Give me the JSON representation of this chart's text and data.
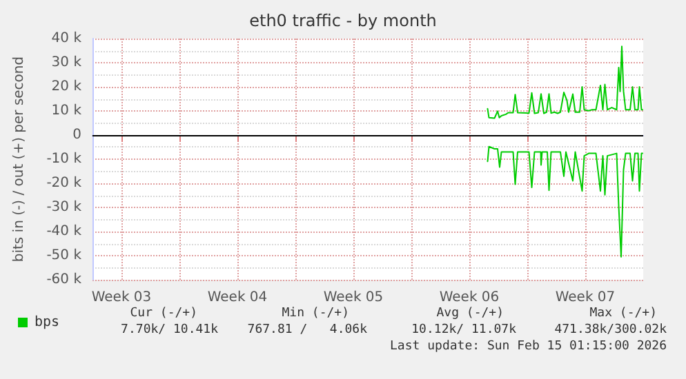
{
  "chart_data": {
    "type": "line",
    "title": "eth0 traffic - by month",
    "ylabel": "bits in (-) / out (+) per second",
    "xlim": [
      "2026-01-13T18:00",
      "2026-02-16T00:00"
    ],
    "xticks": [
      {
        "value": "2026-01-15T12:00",
        "label": "Week 03"
      },
      {
        "value": "2026-01-19T00:00",
        "label": null
      },
      {
        "value": "2026-01-22T12:00",
        "label": "Week 04"
      },
      {
        "value": "2026-01-26T00:00",
        "label": null
      },
      {
        "value": "2026-01-29T12:00",
        "label": "Week 05"
      },
      {
        "value": "2026-02-02T00:00",
        "label": null
      },
      {
        "value": "2026-02-05T12:00",
        "label": "Week 06"
      },
      {
        "value": "2026-02-09T00:00",
        "label": null
      },
      {
        "value": "2026-02-12T12:00",
        "label": "Week 07"
      }
    ],
    "ylim": [
      -60000,
      40000
    ],
    "yticks": [
      {
        "value": -60000,
        "label": "-60 k"
      },
      {
        "value": -50000,
        "label": "-50 k"
      },
      {
        "value": -40000,
        "label": "-40 k"
      },
      {
        "value": -30000,
        "label": "-30 k"
      },
      {
        "value": -20000,
        "label": "-20 k"
      },
      {
        "value": -10000,
        "label": "-10 k"
      },
      0,
      {
        "value": 10000,
        "label": "10 k"
      },
      {
        "value": 20000,
        "label": "20 k"
      },
      {
        "value": 30000,
        "label": "30 k"
      },
      {
        "value": 40000,
        "label": "40 k"
      }
    ],
    "grid": true,
    "legend": "bottom left",
    "marker": "none",
    "line_style": "solid",
    "ref_lines": [
      {
        "axis": "y",
        "value": 0,
        "color": "#000000"
      }
    ],
    "series": [
      {
        "name": "bps",
        "color": "#00cc00",
        "x": [
          "2026-02-06T14:30",
          "2026-02-06T16:30",
          "2026-02-07T00:30",
          "2026-02-07T05:00",
          "2026-02-07T07:30",
          "2026-02-07T10:30",
          "2026-02-07T17:00",
          "2026-02-07T20:30",
          "2026-02-08T03:30",
          "2026-02-08T06:30",
          "2026-02-08T10:00",
          "2026-02-09T02:30",
          "2026-02-09T06:30",
          "2026-02-09T10:30",
          "2026-02-09T16:00",
          "2026-02-09T20:00",
          "2026-02-10T00:00",
          "2026-02-10T04:00",
          "2026-02-10T07:30",
          "2026-02-10T10:30",
          "2026-02-10T15:30",
          "2026-02-10T20:00",
          "2026-02-11T00:00",
          "2026-02-11T05:00",
          "2026-02-11T09:30",
          "2026-02-11T12:00",
          "2026-02-11T18:00",
          "2026-02-11T21:30",
          "2026-02-12T04:00",
          "2026-02-12T07:30",
          "2026-02-12T10:30",
          "2026-02-12T17:00",
          "2026-02-12T22:00",
          "2026-02-13T03:30",
          "2026-02-13T10:00",
          "2026-02-13T13:30",
          "2026-02-13T16:30",
          "2026-02-13T20:00",
          "2026-02-14T02:30",
          "2026-02-14T09:30",
          "2026-02-14T12:30",
          "2026-02-14T14:30",
          "2026-02-14T17:00",
          "2026-02-14T19:30",
          "2026-02-14T22:30",
          "2026-02-15T05:00",
          "2026-02-15T08:30",
          "2026-02-15T12:00",
          "2026-02-15T16:30",
          "2026-02-15T18:30",
          "2026-02-15T21:30",
          "2026-02-15T23:00"
        ],
        "values": [
          10900,
          7200,
          7000,
          9900,
          7200,
          8000,
          8600,
          9300,
          9300,
          16800,
          9300,
          9100,
          17500,
          9000,
          9300,
          17100,
          9000,
          9500,
          17100,
          9100,
          9500,
          9000,
          9500,
          17700,
          14300,
          9500,
          17000,
          9500,
          9500,
          20000,
          10500,
          10100,
          10500,
          10500,
          20600,
          10500,
          21000,
          10500,
          11400,
          10500,
          28000,
          18100,
          36800,
          18100,
          10500,
          10500,
          20000,
          10500,
          10500,
          20000,
          10500,
          10500
        ]
      },
      {
        "color": "#00cc00",
        "x": [
          "2026-02-06T14:30",
          "2026-02-06T16:30",
          "2026-02-07T00:30",
          "2026-02-07T05:00",
          "2026-02-07T08:00",
          "2026-02-07T10:30",
          "2026-02-08T03:30",
          "2026-02-08T06:30",
          "2026-02-08T10:00",
          "2026-02-09T02:30",
          "2026-02-09T06:30",
          "2026-02-09T10:30",
          "2026-02-09T19:30",
          "2026-02-09T20:00",
          "2026-02-09T21:30",
          "2026-02-10T05:00",
          "2026-02-10T07:30",
          "2026-02-10T10:30",
          "2026-02-11T00:00",
          "2026-02-11T05:00",
          "2026-02-11T08:00",
          "2026-02-11T18:00",
          "2026-02-11T21:30",
          "2026-02-12T07:30",
          "2026-02-12T10:30",
          "2026-02-12T17:00",
          "2026-02-13T03:30",
          "2026-02-13T10:00",
          "2026-02-13T13:30",
          "2026-02-13T16:30",
          "2026-02-13T20:00",
          "2026-02-14T09:30",
          "2026-02-14T12:30",
          "2026-02-14T16:00",
          "2026-02-14T19:30",
          "2026-02-14T22:30",
          "2026-02-15T05:00",
          "2026-02-15T08:30",
          "2026-02-15T12:00",
          "2026-02-15T16:30",
          "2026-02-15T18:30",
          "2026-02-15T21:30",
          "2026-02-15T23:00"
        ],
        "values": [
          -10900,
          -4800,
          -5700,
          -5700,
          -13300,
          -7000,
          -7000,
          -20400,
          -7000,
          -7000,
          -21700,
          -7000,
          -7000,
          -12400,
          -7000,
          -7000,
          -22900,
          -7000,
          -7000,
          -17100,
          -7000,
          -19000,
          -7000,
          -23200,
          -8600,
          -7600,
          -7600,
          -23200,
          -8600,
          -24800,
          -8600,
          -7600,
          -29500,
          -50500,
          -14300,
          -7600,
          -7600,
          -19000,
          -7600,
          -7600,
          -23200,
          -7600,
          -7600
        ]
      }
    ],
    "annotations": [
      "Cur (-/+)",
      "Min (-/+)",
      "Avg (-/+)",
      "Max (-/+)",
      "7.70k/ 10.41k",
      "767.81 /   4.06k",
      "10.12k/ 11.07k",
      "471.38k/300.02k",
      "Last update: Sun Feb 15 01:15:00 2026"
    ]
  }
}
